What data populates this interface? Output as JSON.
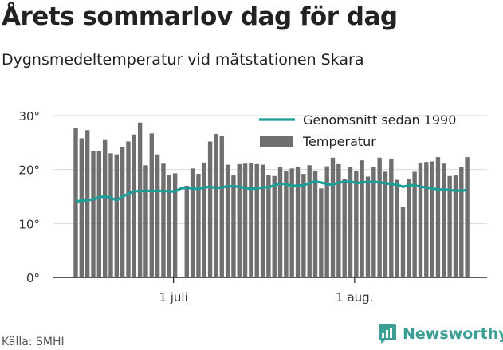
{
  "header": {
    "title": "Årets sommarlov dag för dag",
    "subtitle": "Dygnsmedeltemperatur vid mätstationen Skara"
  },
  "footer": {
    "source": "Källa: SMHI",
    "brand": "Newsworthy",
    "brand_icon": "newsworthy-chart-icon"
  },
  "colors": {
    "bars": "#6f6f6f",
    "average_line": "#1a9e96",
    "axis": "#222222",
    "grid": "#d9d9d9",
    "brand": "#3a9e94"
  },
  "chart_data": {
    "type": "bar",
    "xlabel": "",
    "ylabel": "",
    "ylim": [
      0,
      30
    ],
    "yticks": [
      0,
      10,
      20,
      30
    ],
    "ytick_labels": [
      "0°",
      "10°",
      "20°",
      "30°"
    ],
    "xticks": [
      {
        "index": 17,
        "label": "1 juli"
      },
      {
        "index": 48,
        "label": "1 aug."
      }
    ],
    "legend": {
      "position": "top-right",
      "entries": [
        "Genomsnitt sedan 1990",
        "Temperatur"
      ]
    },
    "series": [
      {
        "name": "Temperatur",
        "kind": "bar",
        "values": [
          27.7,
          25.8,
          27.3,
          23.5,
          23.4,
          25.6,
          23.0,
          22.8,
          24.1,
          25.2,
          26.5,
          28.7,
          20.8,
          26.7,
          22.8,
          21.1,
          19.0,
          19.3,
          null,
          17.0,
          20.2,
          19.2,
          21.3,
          25.2,
          26.6,
          26.2,
          20.9,
          18.9,
          21.0,
          21.1,
          21.2,
          21.0,
          20.9,
          19.0,
          18.8,
          20.4,
          19.8,
          20.2,
          20.5,
          19.2,
          20.8,
          19.7,
          16.5,
          20.6,
          22.2,
          21.0,
          18.2,
          20.5,
          19.8,
          21.7,
          18.7,
          20.5,
          22.2,
          19.6,
          22.0,
          18.1,
          13.0,
          18.2,
          19.6,
          21.3,
          21.4,
          21.5,
          22.3,
          21.1,
          18.8,
          18.9,
          20.4,
          22.3
        ]
      },
      {
        "name": "Genomsnitt sedan 1990",
        "kind": "line",
        "values": [
          14.1,
          14.2,
          14.3,
          14.5,
          14.9,
          15.0,
          14.8,
          14.3,
          15.0,
          15.5,
          16.0,
          16.0,
          16.1,
          16.0,
          16.1,
          16.0,
          16.0,
          15.9,
          16.5,
          16.6,
          16.5,
          16.4,
          16.7,
          16.8,
          16.6,
          16.7,
          16.9,
          16.9,
          16.8,
          16.6,
          16.4,
          16.5,
          16.7,
          16.7,
          17.1,
          17.4,
          17.3,
          17.0,
          17.0,
          17.1,
          17.5,
          17.8,
          17.6,
          17.3,
          17.2,
          17.6,
          17.7,
          17.8,
          17.5,
          17.6,
          17.7,
          17.7,
          17.6,
          17.5,
          17.3,
          17.2,
          16.8,
          17.1,
          17.1,
          16.8,
          16.7,
          16.5,
          16.3,
          16.3,
          16.2,
          16.1,
          16.1,
          16.2
        ]
      }
    ]
  }
}
